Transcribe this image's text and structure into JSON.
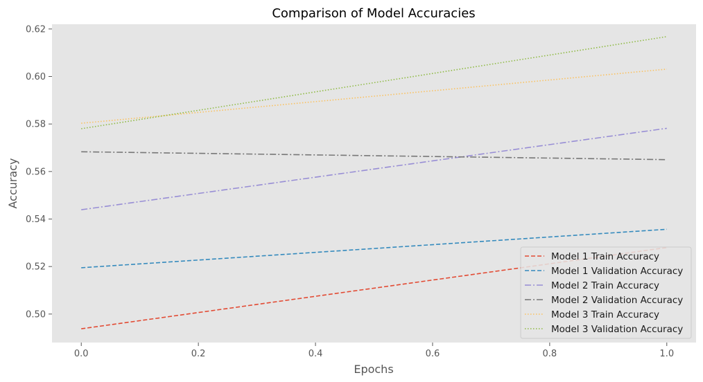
{
  "chart_data": {
    "type": "line",
    "title": "Comparison of Model Accuracies",
    "xlabel": "Epochs",
    "ylabel": "Accuracy",
    "xlim": [
      -0.05,
      1.05
    ],
    "ylim": [
      0.488,
      0.622
    ],
    "xticks": [
      "0.0",
      "0.2",
      "0.4",
      "0.6",
      "0.8",
      "1.0"
    ],
    "yticks": [
      "0.50",
      "0.52",
      "0.54",
      "0.56",
      "0.58",
      "0.60",
      "0.62"
    ],
    "grid": false,
    "legend_position": "lower-right",
    "x": [
      0,
      1
    ],
    "series": [
      {
        "name": "Model 1 Train Accuracy",
        "values": [
          0.4938,
          0.528
        ],
        "color": "#E24A33",
        "style": "dashed"
      },
      {
        "name": "Model 1 Validation Accuracy",
        "values": [
          0.5195,
          0.5357
        ],
        "color": "#348ABD",
        "style": "dashed"
      },
      {
        "name": "Model 2 Train Accuracy",
        "values": [
          0.5439,
          0.5782
        ],
        "color": "#988ED5",
        "style": "dashdot"
      },
      {
        "name": "Model 2 Validation Accuracy",
        "values": [
          0.5683,
          0.565
        ],
        "color": "#777777",
        "style": "dashdot"
      },
      {
        "name": "Model 3 Train Accuracy",
        "values": [
          0.5803,
          0.6031
        ],
        "color": "#FBC15E",
        "style": "dotted"
      },
      {
        "name": "Model 3 Validation Accuracy",
        "values": [
          0.578,
          0.6168
        ],
        "color": "#8EBA42",
        "style": "dotted"
      }
    ]
  }
}
